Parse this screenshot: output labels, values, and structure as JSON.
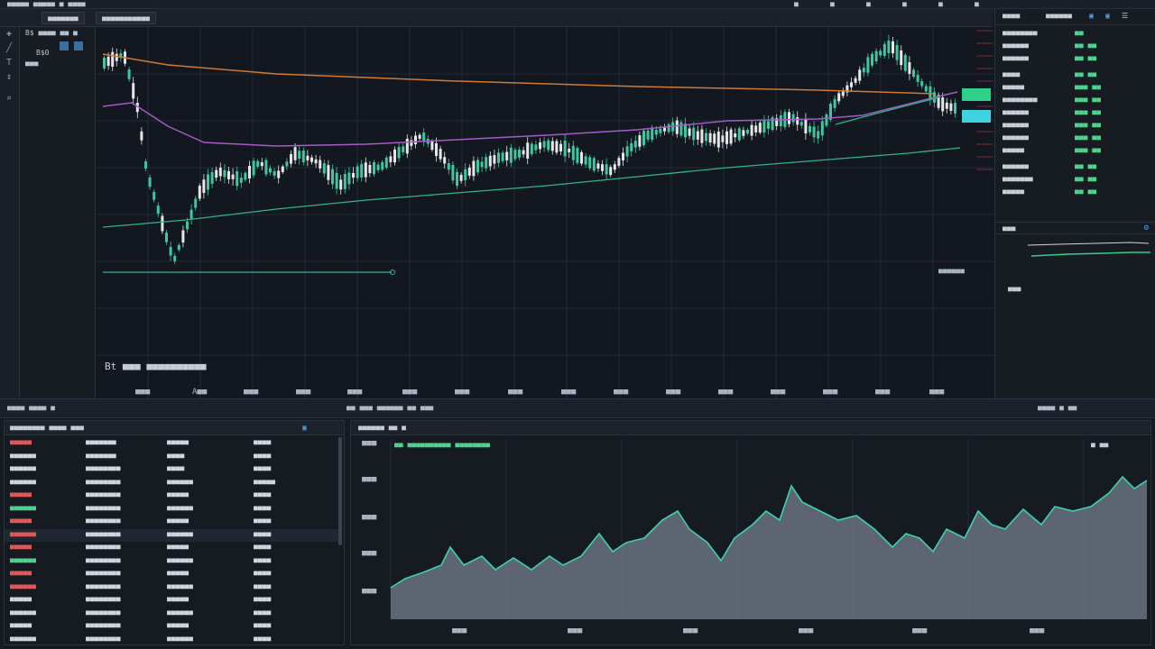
{
  "topbar": {
    "left_text": "■■■■■ ■■■■■ ■ ■■■■",
    "right_icons": [
      "■",
      "■",
      "■",
      "■",
      "■",
      "■"
    ]
  },
  "tabs": [
    {
      "label": "■■■■■■■"
    },
    {
      "label": "■■■■■■■■■■■"
    }
  ],
  "quickpanel": {
    "line1": "B$ ■■■■ ■■ ■",
    "line2": "B$0",
    "line3": "■■■"
  },
  "chart": {
    "price_label": "■■■■■■",
    "watermark": "Bt ■■■ ■■■■■■■■■■",
    "x_labels": [
      "■■■",
      "A■■",
      "■■■",
      "■■■",
      "■■■",
      "■■■",
      "■■■",
      "■■■",
      "■■■",
      "■■■",
      "■■■",
      "■■■",
      "■■■",
      "■■■",
      "■■■",
      "■■■"
    ]
  },
  "rightpanel": {
    "head_left": "■■■■",
    "head_mid": "■■■■■■",
    "rows": [
      {
        "k": "■■■■■■■■",
        "v": "■■"
      },
      {
        "k": "■■■■■■",
        "v": "■■ ■■"
      },
      {
        "k": "■■■■■■",
        "v": "■■ ■■"
      },
      {
        "k": "■■■■",
        "v": "■■ ■■"
      },
      {
        "k": "■■■■■",
        "v": "■■■ ■■"
      },
      {
        "k": "■■■■■■■■",
        "v": "■■■ ■■"
      },
      {
        "k": "■■■■■■",
        "v": "■■■ ■■"
      },
      {
        "k": "■■■■■■",
        "v": "■■■ ■■"
      },
      {
        "k": "■■■■■■",
        "v": "■■■ ■■"
      },
      {
        "k": "■■■■■",
        "v": "■■■ ■■"
      },
      {
        "k": "■■■■■■",
        "v": "■■ ■■"
      },
      {
        "k": "■■■■■■■",
        "v": "■■ ■■"
      },
      {
        "k": "■■■■■",
        "v": "■■ ■■"
      }
    ],
    "mini_label": "■■■",
    "mini_value": "■■■"
  },
  "midbar": {
    "left": "■■■■ ■■■■ ■",
    "center": "■■ ■■■ ■■■■■■ ■■ ■■■",
    "right": "■■■■ ■ ■■"
  },
  "orderbook": {
    "head": "■■■■■■■■ ■■■■ ■■■",
    "rows": [
      [
        "■■■■■",
        "■■■■■■■",
        "■■■■■",
        "■■■■"
      ],
      [
        "■■■■■■",
        "■■■■■■■",
        "■■■■",
        "■■■■"
      ],
      [
        "■■■■■■",
        "■■■■■■■■",
        "■■■■",
        "■■■■"
      ],
      [
        "■■■■■■",
        "■■■■■■■■",
        "■■■■■■",
        "■■■■■"
      ],
      [
        "■■■■■",
        "■■■■■■■■",
        "■■■■■",
        "■■■■"
      ],
      [
        "■■■■■■",
        "■■■■■■■■",
        "■■■■■■",
        "■■■■"
      ],
      [
        "■■■■■",
        "■■■■■■■■",
        "■■■■■",
        "■■■■"
      ],
      [
        "■■■■■■",
        "■■■■■■■■",
        "■■■■■■",
        "■■■■"
      ],
      [
        "■■■■■",
        "■■■■■■■■",
        "■■■■■",
        "■■■■"
      ],
      [
        "■■■■■■",
        "■■■■■■■■",
        "■■■■■■",
        "■■■■"
      ],
      [
        "■■■■■",
        "■■■■■■■■",
        "■■■■■",
        "■■■■"
      ],
      [
        "■■■■■■",
        "■■■■■■■■",
        "■■■■■■",
        "■■■■"
      ],
      [
        "■■■■■",
        "■■■■■■■■",
        "■■■■■",
        "■■■■"
      ],
      [
        "■■■■■■",
        "■■■■■■■■",
        "■■■■■■",
        "■■■■"
      ],
      [
        "■■■■■",
        "■■■■■■■■",
        "■■■■■",
        "■■■■"
      ],
      [
        "■■■■■■",
        "■■■■■■■■",
        "■■■■■■",
        "■■■■"
      ]
    ],
    "row_colors": [
      "#e05a5a",
      "#d0d7e0",
      "#d0d7e0",
      "#d0d7e0",
      "#e05a5a",
      "#4fd38f",
      "#e05a5a",
      "#e05a5a",
      "#e05a5a",
      "#4fd38f",
      "#e05a5a",
      "#e05a5a",
      "#d0d7e0",
      "#d0d7e0",
      "#d0d7e0",
      "#d0d7e0"
    ]
  },
  "depthpanel": {
    "head": "■■■■■■ ■■ ■",
    "legend": "■■ ■■■■■■■■■■ ■■■■■■■■",
    "y_labels": [
      "■■■",
      "■■■",
      "■■■",
      "■■■",
      "■■■"
    ],
    "x_labels": [
      "■■■",
      "■■■",
      "■■■",
      "■■■",
      "■■■",
      "■■■"
    ],
    "right_label": "■ ■■"
  },
  "colors": {
    "up": "#3ec7a0",
    "down": "#e6e6e6",
    "ma_orange": "#d07a32",
    "ma_purple": "#a45bc8",
    "ma_green": "#2fb585",
    "depth_fill": "#6b7280",
    "depth_line": "#3ed1b0"
  }
}
